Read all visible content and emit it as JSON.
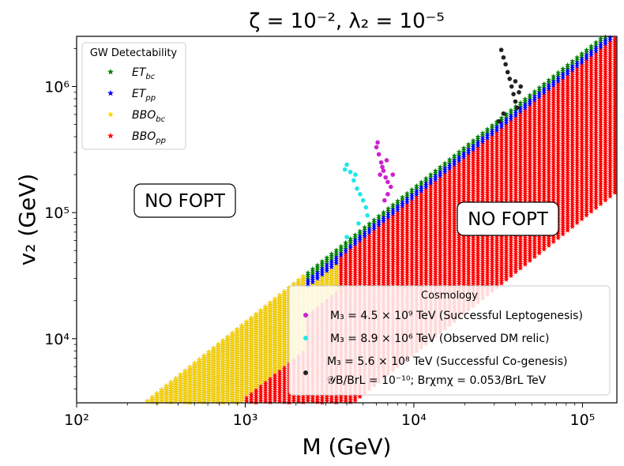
{
  "chart_data": {
    "type": "scatter",
    "title": "ζ = 10⁻²,  λ₂ = 10⁻⁵",
    "xlabel": "M (GeV)",
    "ylabel": "v₂ (GeV)",
    "xscale": "log",
    "yscale": "log",
    "xlim": [
      100,
      160000
    ],
    "ylim": [
      3100,
      2500000
    ],
    "xticks": [
      {
        "value": 100,
        "label": "10²"
      },
      {
        "value": 1000,
        "label": "10³"
      },
      {
        "value": 10000,
        "label": "10⁴"
      },
      {
        "value": 100000,
        "label": "10⁵"
      }
    ],
    "yticks": [
      {
        "value": 10000,
        "label": "10⁴"
      },
      {
        "value": 100000,
        "label": "10⁵"
      },
      {
        "value": 1000000,
        "label": "10⁶"
      }
    ],
    "band": {
      "description": "Allowed FOPT region between lower bound v2 ≈ 0.40·M^1.07 and upper bound v2 ≈ 8.5·M^1.07",
      "series_colors": {
        "ET_bc": "#008000",
        "ET_pp": "#0000ff",
        "BBO_bc": "#ffd700",
        "BBO_pp": "#ff0000"
      }
    },
    "gw_legend": {
      "title": "GW Detectability",
      "entries": [
        {
          "name": "ETbc",
          "label_main": "ET",
          "label_sub": "bc",
          "color": "#008000",
          "marker": "star"
        },
        {
          "name": "ETpp",
          "label_main": "ET",
          "label_sub": "pp",
          "color": "#0000ff",
          "marker": "star"
        },
        {
          "name": "BBObc",
          "label_main": "BBO",
          "label_sub": "bc",
          "color": "#ffd700",
          "marker": "star"
        },
        {
          "name": "BBOpp",
          "label_main": "BBO",
          "label_sub": "pp",
          "color": "#ff0000",
          "marker": "star"
        }
      ]
    },
    "cosmo_legend": {
      "title": "Cosmology",
      "entries": [
        {
          "name": "leptogenesis",
          "label": "M₃ = 4.5 × 10⁹ TeV (Successful Leptogenesis)",
          "color": "#cc22cc",
          "marker": "circle"
        },
        {
          "name": "dm-relic",
          "label": "M₃ = 8.9 × 10⁶ TeV (Observed DM relic)",
          "color": "#22e6e6",
          "marker": "circle"
        },
        {
          "name": "cogenesis",
          "label": "M₃ = 5.6 × 10⁸ TeV (Successful Co-genesis)",
          "label2": "𝒴B/BrL = 10⁻¹⁰;  Brχmχ = 0.053/BrL TeV",
          "color": "#222222",
          "marker": "circle"
        }
      ]
    },
    "annotations": [
      {
        "name": "no-fopt-left",
        "text": "NO FOPT",
        "x": 480,
        "y": 120000
      },
      {
        "name": "no-fopt-right",
        "text": "NO FOPT",
        "x": 32000,
        "y": 85000
      }
    ],
    "cosmology_points": {
      "leptogenesis": [
        [
          6000,
          330000
        ],
        [
          6200,
          290000
        ],
        [
          6400,
          250000
        ],
        [
          6600,
          215000
        ],
        [
          6800,
          190000
        ],
        [
          7000,
          175000
        ],
        [
          7300,
          160000
        ],
        [
          7000,
          140000
        ],
        [
          6700,
          125000
        ],
        [
          6300,
          200000
        ],
        [
          6500,
          230000
        ],
        [
          7500,
          200000
        ],
        [
          6900,
          260000
        ],
        [
          6100,
          360000
        ]
      ],
      "dm-relic": [
        [
          4000,
          240000
        ],
        [
          4200,
          210000
        ],
        [
          4400,
          180000
        ],
        [
          4600,
          155000
        ],
        [
          4800,
          140000
        ],
        [
          5000,
          125000
        ],
        [
          5200,
          110000
        ],
        [
          5300,
          95000
        ],
        [
          4700,
          82000
        ],
        [
          4000,
          64000
        ],
        [
          3900,
          220000
        ],
        [
          4500,
          200000
        ]
      ],
      "cogenesis": [
        [
          33000,
          1950000
        ],
        [
          34000,
          1700000
        ],
        [
          35000,
          1500000
        ],
        [
          36000,
          1300000
        ],
        [
          37000,
          1150000
        ],
        [
          38000,
          1000000
        ],
        [
          39000,
          870000
        ],
        [
          40000,
          760000
        ],
        [
          41000,
          680000
        ],
        [
          34000,
          610000
        ],
        [
          32000,
          530000
        ],
        [
          43000,
          1000000
        ],
        [
          42000,
          900000
        ],
        [
          40000,
          1100000
        ]
      ]
    }
  }
}
